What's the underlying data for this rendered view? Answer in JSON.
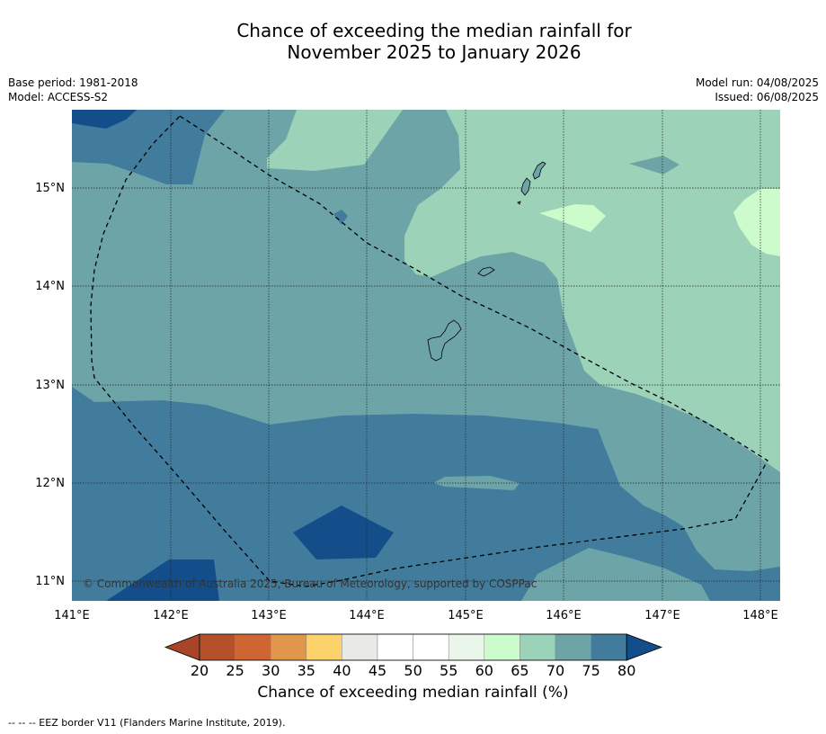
{
  "title": {
    "line1": "Chance of exceeding the median rainfall for",
    "line2": "November 2025 to January 2026"
  },
  "meta_left": {
    "base_period": "Base period: 1981-2018",
    "model": "Model: ACCESS-S2"
  },
  "meta_right": {
    "model_run": "Model run: 04/08/2025",
    "issued": "Issued: 06/08/2025"
  },
  "map": {
    "copyright": "© Commonwealth of Australia 2025, Bureau of Meteorology, supported by COSPPac",
    "lat_labels": [
      "15°N",
      "14°N",
      "13°N",
      "12°N",
      "11°N"
    ],
    "lon_labels": [
      "141°E",
      "142°E",
      "143°E",
      "144°E",
      "145°E",
      "146°E",
      "147°E",
      "148°E"
    ],
    "background_class_percent": "70-75",
    "region_classes": [
      "80+",
      "75-80",
      "70-75",
      "65-70",
      "60-65"
    ]
  },
  "colorbar": {
    "ticks": [
      "20",
      "25",
      "30",
      "35",
      "40",
      "45",
      "50",
      "55",
      "60",
      "65",
      "70",
      "75",
      "80"
    ],
    "colors": [
      "#a8442a",
      "#b5512a",
      "#cf6533",
      "#e0964b",
      "#fdd26a",
      "#e9e9e5",
      "#ffffff",
      "#ffffff",
      "#e9f6e9",
      "#ccfccc",
      "#9cd2b8",
      "#6da4a8",
      "#427c9d",
      "#134e8a"
    ],
    "title": "Chance of exceeding median rainfall (%)"
  },
  "footnote": "--  --  -- EEZ border V11 (Flanders Marine Institute, 2019)."
}
